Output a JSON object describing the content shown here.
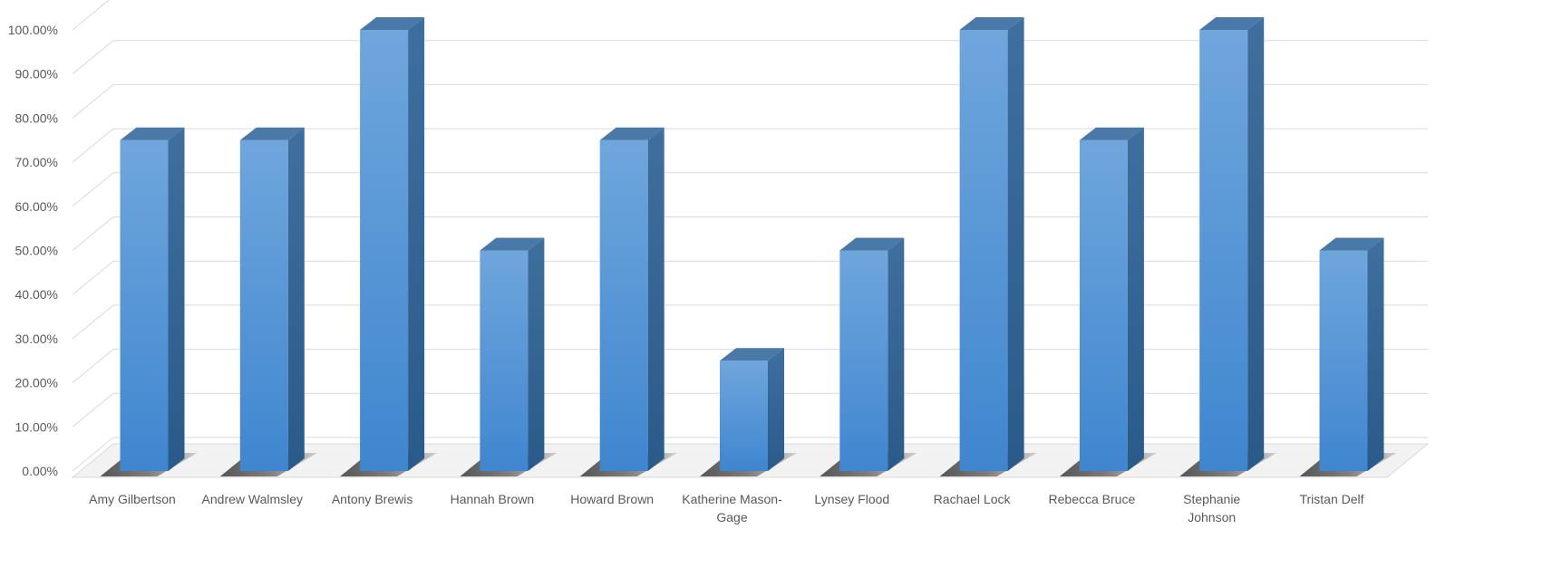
{
  "chart_data": {
    "type": "bar",
    "style": "3d-column",
    "title": "",
    "xlabel": "",
    "ylabel": "",
    "ylim": [
      0,
      1
    ],
    "yticks": [
      0,
      0.1,
      0.2,
      0.3,
      0.4,
      0.5,
      0.6,
      0.7,
      0.8,
      0.9,
      1.0
    ],
    "ytick_labels": [
      "0.00%",
      "10.00%",
      "20.00%",
      "30.00%",
      "40.00%",
      "50.00%",
      "60.00%",
      "70.00%",
      "80.00%",
      "90.00%",
      "100.00%"
    ],
    "grid": true,
    "legend": "none",
    "categories": [
      "Amy Gilbertson",
      "Andrew Walmsley",
      "Antony Brewis",
      "Hannah Brown",
      "Howard Brown",
      "Katherine Mason-Gage",
      "Lynsey Flood",
      "Rachael Lock",
      "Rebecca Bruce",
      "Stephanie Johnson",
      "Tristan Delf"
    ],
    "category_lines": [
      [
        "Amy Gilbertson"
      ],
      [
        "Andrew Walmsley"
      ],
      [
        "Antony Brewis"
      ],
      [
        "Hannah Brown"
      ],
      [
        "Howard Brown"
      ],
      [
        "Katherine Mason-",
        "Gage"
      ],
      [
        "Lynsey Flood"
      ],
      [
        "Rachael Lock"
      ],
      [
        "Rebecca Bruce"
      ],
      [
        "Stephanie",
        "Johnson"
      ],
      [
        "Tristan Delf"
      ]
    ],
    "values": [
      0.75,
      0.75,
      1.0,
      0.5,
      0.75,
      0.25,
      0.5,
      1.0,
      0.75,
      1.0,
      0.5
    ],
    "colors": {
      "bar_front": "#5b9bd5",
      "bar_top": "#4a78a8",
      "bar_side": "#2e5a86",
      "gridline": "#d9d9d9",
      "axis_text": "#595959"
    }
  }
}
